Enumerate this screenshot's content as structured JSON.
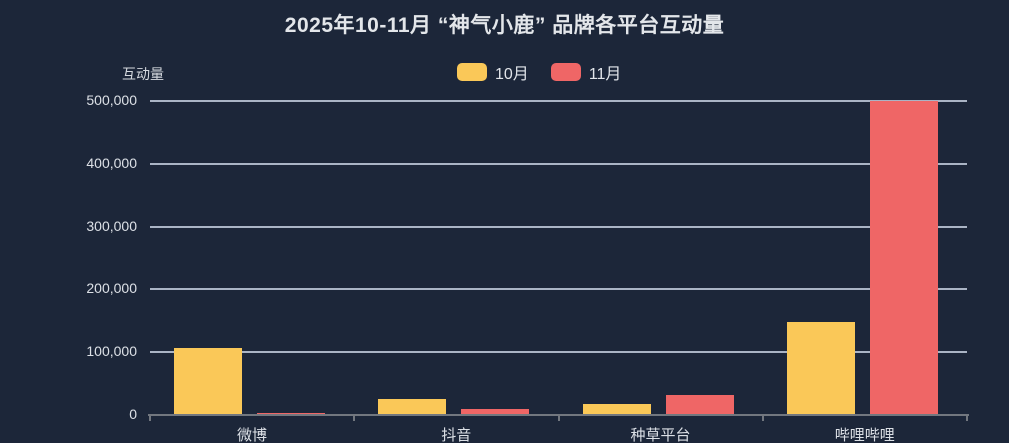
{
  "colors": {
    "background": "#1C2639",
    "gridline": "#AAB4C5",
    "axis": "#72777F",
    "text": "#DCE0E6",
    "title_text": "#E3E6EA",
    "series_october": "#FAC858",
    "series_november": "#EF6666"
  },
  "chart_data": {
    "type": "bar",
    "title": "2025年10-11月 “神气小鹿” 品牌各平台互动量",
    "ylabel": "互动量",
    "xlabel": "",
    "categories": [
      "微博",
      "抖音",
      "种草平台",
      "哔哩哔哩"
    ],
    "series": [
      {
        "name": "10月",
        "color": "#FAC858",
        "values": [
          106000,
          25000,
          18000,
          148000
        ]
      },
      {
        "name": "11月",
        "color": "#EF6666",
        "values": [
          3000,
          9000,
          32000,
          500000
        ]
      }
    ],
    "ylim": [
      0,
      500000
    ],
    "yticks": [
      0,
      100000,
      200000,
      300000,
      400000,
      500000
    ],
    "ytick_labels": [
      "0",
      "100,000",
      "200,000",
      "300,000",
      "400,000",
      "500,000"
    ],
    "grid": true,
    "legend_position": "top"
  }
}
